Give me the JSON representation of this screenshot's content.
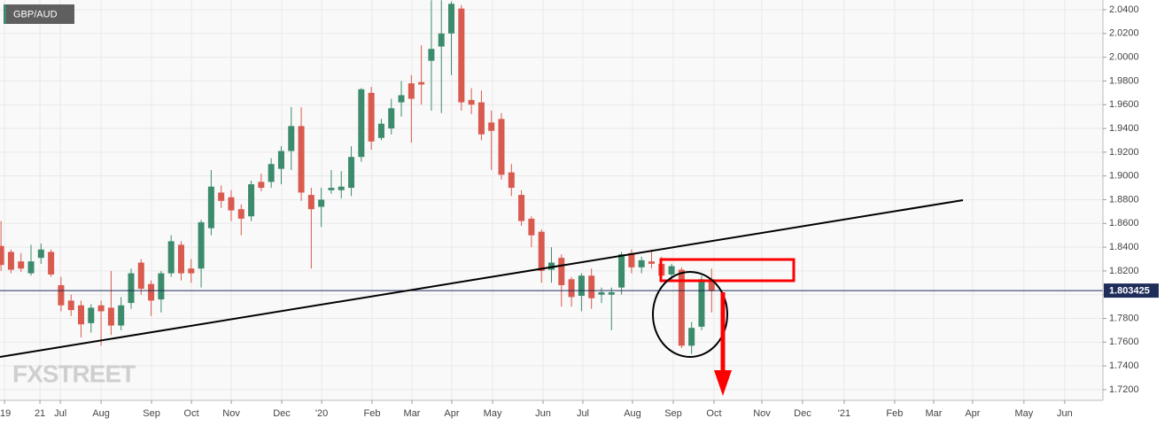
{
  "chart_data": {
    "type": "candlestick",
    "title": "GBP/AUD",
    "watermark": "FXSTREET",
    "x": [
      0,
      1,
      2,
      3,
      4,
      5,
      6,
      7,
      8,
      9,
      10,
      11,
      12,
      13,
      14,
      15,
      16,
      17,
      18,
      19,
      20,
      21,
      22,
      23,
      24,
      25,
      26,
      27,
      28,
      29,
      30,
      31,
      32,
      33,
      34,
      35,
      36,
      37,
      38,
      39,
      40,
      41,
      42,
      43,
      44,
      45,
      46,
      47,
      48,
      49,
      50,
      51,
      52,
      53,
      54,
      55,
      56,
      57,
      58,
      59,
      60,
      61,
      62,
      63,
      64,
      65,
      66,
      67,
      68,
      69,
      70,
      71
    ],
    "open": [
      1.841,
      1.836,
      1.828,
      1.818,
      1.831,
      1.836,
      1.808,
      1.795,
      1.791,
      1.776,
      1.791,
      1.789,
      1.774,
      1.793,
      1.827,
      1.809,
      1.796,
      1.818,
      1.842,
      1.822,
      1.822,
      1.856,
      1.886,
      1.882,
      1.872,
      1.866,
      1.895,
      1.895,
      1.906,
      1.921,
      1.942,
      1.884,
      1.874,
      1.888,
      1.888,
      1.89,
      1.916,
      1.97,
      1.932,
      1.94,
      1.962,
      1.978,
      1.979,
      1.997,
      2.009,
      2.02,
      2.041,
      1.964,
      1.962,
      1.945,
      1.948,
      1.903,
      1.884,
      1.864,
      1.853,
      1.821,
      1.831,
      1.813,
      1.799,
      1.816,
      1.8,
      1.8,
      1.806,
      1.835,
      1.823,
      1.828,
      1.826,
      1.817,
      1.821,
      1.757,
      1.773,
      1.813
    ],
    "high": [
      1.862,
      1.838,
      1.835,
      1.842,
      1.843,
      1.838,
      1.815,
      1.8,
      1.795,
      1.792,
      1.795,
      1.82,
      1.798,
      1.822,
      1.83,
      1.812,
      1.82,
      1.85,
      1.845,
      1.83,
      1.863,
      1.905,
      1.892,
      1.888,
      1.876,
      1.896,
      1.902,
      1.915,
      1.925,
      1.958,
      1.958,
      1.89,
      1.89,
      1.905,
      1.904,
      1.925,
      1.974,
      1.975,
      1.948,
      1.965,
      1.98,
      1.985,
      2.01,
      2.048,
      2.048,
      2.047,
      2.044,
      1.974,
      1.972,
      1.955,
      1.953,
      1.91,
      1.888,
      1.866,
      1.855,
      1.84,
      1.834,
      1.815,
      1.818,
      1.822,
      1.806,
      1.806,
      1.836,
      1.838,
      1.832,
      1.838,
      1.832,
      1.826,
      1.823,
      1.777,
      1.816,
      1.822
    ],
    "low": [
      1.82,
      1.818,
      1.819,
      1.816,
      1.826,
      1.815,
      1.786,
      1.782,
      1.764,
      1.768,
      1.757,
      1.766,
      1.77,
      1.788,
      1.8,
      1.782,
      1.785,
      1.815,
      1.812,
      1.81,
      1.806,
      1.85,
      1.873,
      1.862,
      1.85,
      1.862,
      1.887,
      1.89,
      1.893,
      1.905,
      1.879,
      1.822,
      1.857,
      1.885,
      1.881,
      1.883,
      1.912,
      1.922,
      1.93,
      1.935,
      1.95,
      1.928,
      1.96,
      1.955,
      1.953,
      1.985,
      1.955,
      1.952,
      1.93,
      1.905,
      1.897,
      1.883,
      1.858,
      1.84,
      1.81,
      1.81,
      1.79,
      1.79,
      1.786,
      1.788,
      1.793,
      1.77,
      1.8,
      1.818,
      1.818,
      1.822,
      1.812,
      1.812,
      1.755,
      1.75,
      1.77,
      1.785
    ],
    "close": [
      1.825,
      1.821,
      1.822,
      1.828,
      1.838,
      1.817,
      1.791,
      1.787,
      1.775,
      1.789,
      1.786,
      1.774,
      1.791,
      1.818,
      1.805,
      1.795,
      1.818,
      1.845,
      1.818,
      1.818,
      1.861,
      1.891,
      1.879,
      1.871,
      1.864,
      1.893,
      1.89,
      1.91,
      1.921,
      1.942,
      1.886,
      1.872,
      1.88,
      1.89,
      1.891,
      1.916,
      1.973,
      1.929,
      1.944,
      1.957,
      1.968,
      1.965,
      1.977,
      2.007,
      2.02,
      2.045,
      1.962,
      1.96,
      1.935,
      1.938,
      1.901,
      1.89,
      1.862,
      1.85,
      1.82,
      1.827,
      1.808,
      1.798,
      1.816,
      1.797,
      1.802,
      1.802,
      1.834,
      1.823,
      1.829,
      1.826,
      1.816,
      1.824,
      1.757,
      1.772,
      1.813,
      1.803
    ],
    "up_color": "#3b8b6c",
    "down_color": "#d95a4e",
    "current_price": 1.803425,
    "xlim": [
      -0.1,
      110.1
    ],
    "xticks": [
      {
        "value": 0.35,
        "label": "'19"
      },
      {
        "value": 3.89,
        "label": "21"
      },
      {
        "value": 5.93,
        "label": "Jul"
      },
      {
        "value": 10.0,
        "label": "Aug"
      },
      {
        "value": 15.04,
        "label": "Sep"
      },
      {
        "value": 19.03,
        "label": "Oct"
      },
      {
        "value": 23.01,
        "label": "Nov"
      },
      {
        "value": 28.05,
        "label": "Dec"
      },
      {
        "value": 32.04,
        "label": "'20"
      },
      {
        "value": 37.08,
        "label": "Feb"
      },
      {
        "value": 41.06,
        "label": "Mar"
      },
      {
        "value": 45.04,
        "label": "Apr"
      },
      {
        "value": 49.12,
        "label": "May"
      },
      {
        "value": 54.16,
        "label": "Jun"
      },
      {
        "value": 58.14,
        "label": "Jul"
      },
      {
        "value": 63.1,
        "label": "Aug"
      },
      {
        "value": 67.17,
        "label": "Sep"
      },
      {
        "value": 71.24,
        "label": "Oct"
      },
      {
        "value": 76.02,
        "label": "Nov"
      },
      {
        "value": 80.09,
        "label": "Dec"
      },
      {
        "value": 84.25,
        "label": "'21"
      },
      {
        "value": 89.29,
        "label": "Feb"
      },
      {
        "value": 93.19,
        "label": "Mar"
      },
      {
        "value": 97.08,
        "label": "Apr"
      },
      {
        "value": 102.21,
        "label": "May"
      },
      {
        "value": 106.28,
        "label": "Jun"
      }
    ],
    "ylim": [
      1.711,
      2.0482
    ],
    "yticks": [
      {
        "value": 2.04,
        "label": "2.0400"
      },
      {
        "value": 2.02,
        "label": "2.0200"
      },
      {
        "value": 2.0,
        "label": "2.0000"
      },
      {
        "value": 1.98,
        "label": "1.9800"
      },
      {
        "value": 1.96,
        "label": "1.9600"
      },
      {
        "value": 1.94,
        "label": "1.9400"
      },
      {
        "value": 1.92,
        "label": "1.9200"
      },
      {
        "value": 1.9,
        "label": "1.9000"
      },
      {
        "value": 1.88,
        "label": "1.8800"
      },
      {
        "value": 1.86,
        "label": "1.8600"
      },
      {
        "value": 1.84,
        "label": "1.8400"
      },
      {
        "value": 1.82,
        "label": "1.8200"
      },
      {
        "value": 1.8,
        "label": "1.8000"
      },
      {
        "value": 1.78,
        "label": "1.7800"
      },
      {
        "value": 1.76,
        "label": "1.7600"
      },
      {
        "value": 1.74,
        "label": "1.7400"
      },
      {
        "value": 1.72,
        "label": "1.7200"
      }
    ],
    "grid": true
  }
}
